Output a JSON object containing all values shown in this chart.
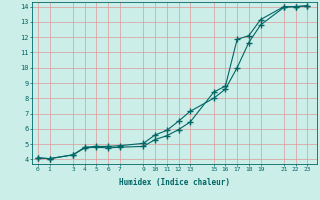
{
  "xlabel": "Humidex (Indice chaleur)",
  "background_color": "#cceee8",
  "grid_color": "#dd9999",
  "line_color": "#006666",
  "xlim": [
    -0.5,
    23.8
  ],
  "ylim": [
    3.7,
    14.3
  ],
  "xticks": [
    0,
    1,
    3,
    4,
    5,
    6,
    7,
    9,
    10,
    11,
    12,
    13,
    15,
    16,
    17,
    18,
    19,
    21,
    22,
    23
  ],
  "yticks": [
    4,
    5,
    6,
    7,
    8,
    9,
    10,
    11,
    12,
    13,
    14
  ],
  "line1_x": [
    0,
    1,
    3,
    4,
    5,
    6,
    7,
    9,
    10,
    11,
    12,
    13,
    15,
    16,
    17,
    18,
    19,
    21,
    22,
    23
  ],
  "line1_y": [
    4.1,
    4.05,
    4.3,
    4.8,
    4.85,
    4.85,
    4.9,
    5.05,
    5.6,
    5.9,
    6.5,
    7.15,
    8.0,
    8.6,
    10.0,
    11.65,
    12.8,
    13.95,
    14.0,
    14.05
  ],
  "line2_x": [
    0,
    1,
    3,
    4,
    5,
    6,
    7,
    9,
    10,
    11,
    12,
    13,
    15,
    16,
    17,
    18,
    19,
    21,
    22,
    23
  ],
  "line2_y": [
    4.1,
    4.05,
    4.3,
    4.75,
    4.8,
    4.75,
    4.8,
    4.85,
    5.3,
    5.55,
    5.95,
    6.45,
    8.4,
    8.8,
    11.85,
    12.1,
    13.15,
    14.0,
    14.0,
    14.05
  ]
}
